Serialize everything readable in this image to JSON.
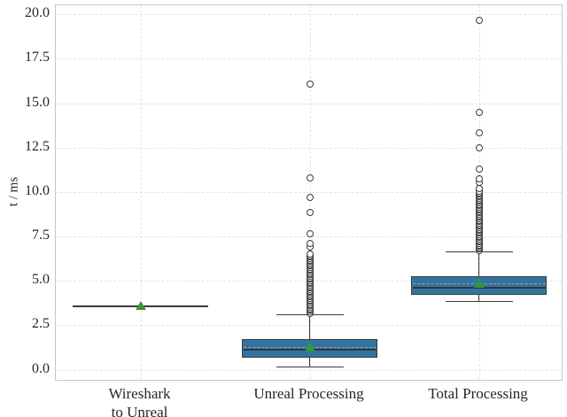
{
  "figure": {
    "y_axis_label": "t / ms"
  },
  "chart_data": {
    "type": "boxplot",
    "title": "",
    "xlabel": "",
    "ylabel": "t / ms",
    "ylim": [
      -0.67,
      20.51
    ],
    "yticks": [
      0.0,
      2.5,
      5.0,
      7.5,
      10.0,
      12.5,
      15.0,
      17.5,
      20.0
    ],
    "ytick_labels": [
      "0.0",
      "2.5",
      "5.0",
      "7.5",
      "10.0",
      "12.5",
      "15.0",
      "17.5",
      "20.0"
    ],
    "grid": {
      "horizontal": true,
      "vertical_at_categories": true,
      "style": "dashed"
    },
    "legend": "none",
    "colors": {
      "box_fill": "#3274a1",
      "box_edge": "#3b3b3b",
      "median": "#373737",
      "mean_marker": "#35973a",
      "mean_line": "#9f9f9f",
      "outlier_edge": "#3b3b3b",
      "gridline": "#e2e2e2",
      "spine": "#c6c6c6"
    },
    "categories": [
      {
        "label_lines": [
          "Wireshark",
          "to Unreal"
        ]
      },
      {
        "label_lines": [
          "Unreal Processing"
        ]
      },
      {
        "label_lines": [
          "Total Processing"
        ]
      }
    ],
    "boxes": [
      {
        "name": "Wireshark to Unreal",
        "whisker_low": 3.6,
        "q1": 3.6,
        "median": 3.6,
        "q3": 3.6,
        "whisker_high": 3.6,
        "mean": 3.6,
        "outliers": [],
        "dense_outlier_band": null
      },
      {
        "name": "Unreal Processing",
        "whisker_low": 0.2,
        "q1": 0.67,
        "median": 1.13,
        "q3": 1.72,
        "whisker_high": 3.1,
        "mean": 1.25,
        "outliers": [
          6.5,
          6.9,
          7.1,
          7.65,
          8.85,
          9.7,
          10.8,
          16.05
        ],
        "dense_outlier_band": {
          "min": 3.19,
          "max": 6.43,
          "count": 40
        }
      },
      {
        "name": "Total Processing",
        "whisker_low": 3.88,
        "q1": 4.21,
        "median": 4.6,
        "q3": 5.27,
        "whisker_high": 6.68,
        "mean": 4.88,
        "outliers": [
          10.2,
          10.55,
          10.75,
          11.3,
          12.5,
          13.35,
          14.5,
          19.65
        ],
        "dense_outlier_band": {
          "min": 6.7,
          "max": 10.05,
          "count": 42
        }
      }
    ]
  }
}
